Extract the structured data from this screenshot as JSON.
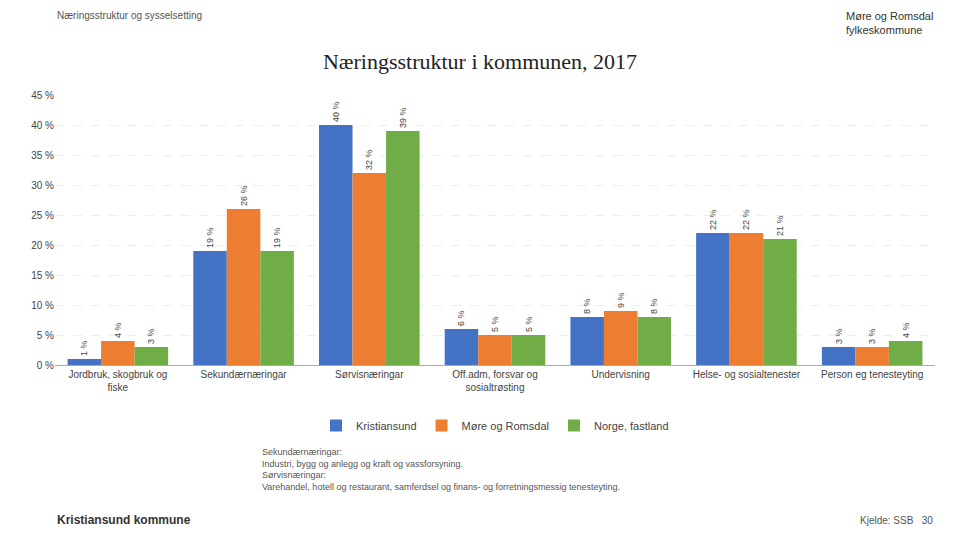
{
  "chart_data": {
    "type": "bar",
    "title": "Næringsstruktur i kommunen, 2017",
    "categories": [
      "Jordbruk, skogbruk og\nfiske",
      "Sekundærnæringar",
      "Sørvisnæringar",
      "Off.adm, forsvar og\nsosialtrøsting",
      "Undervisning",
      "Helse- og sosialtenester",
      "Person eg tenesteyting"
    ],
    "series": [
      {
        "name": "Kristiansund",
        "color": "#4472C4",
        "values": [
          1,
          19,
          40,
          6,
          8,
          22,
          3
        ],
        "value_labels": [
          "1 %",
          "19 %",
          "40 %",
          "6 %",
          "8 %",
          "22 %",
          "3 %"
        ]
      },
      {
        "name": "Møre og Romsdal",
        "color": "#ED7D31",
        "values": [
          4,
          26,
          32,
          5,
          9,
          22,
          3
        ],
        "value_labels": [
          "4 %",
          "26 %",
          "32 %",
          "5 %",
          "9 %",
          "22 %",
          "3 %"
        ]
      },
      {
        "name": "Norge, fastland",
        "color": "#70AD47",
        "values": [
          3,
          19,
          39,
          5,
          8,
          21,
          4
        ],
        "value_labels": [
          "3 %",
          "19 %",
          "39 %",
          "5 %",
          "8 %",
          "21 %",
          "4 %"
        ]
      }
    ],
    "ylim": [
      0,
      45
    ],
    "yticks": [
      {
        "value": 0,
        "label": "0 %"
      },
      {
        "value": 5,
        "label": "5 %"
      },
      {
        "value": 10,
        "label": "10 %"
      },
      {
        "value": 15,
        "label": "15 %"
      },
      {
        "value": 20,
        "label": "20 %"
      },
      {
        "value": 25,
        "label": "25 %"
      },
      {
        "value": 30,
        "label": "30 %"
      },
      {
        "value": 35,
        "label": "35 %"
      },
      {
        "value": 40,
        "label": "40 %"
      },
      {
        "value": 45,
        "label": "45 %"
      }
    ],
    "grid": true,
    "legend": "bottom",
    "data_labels": true,
    "header": "Næringsstruktur og sysselsetting",
    "logo_text": "Møre og Romsdal\nfylkeskommune",
    "footer_notes": [
      "Sekundærnæringar:",
      "Industri, bygg og anlegg og kraft og vassforsyning.",
      "Sørvisnæringar:",
      "Varehandel, hotell og restaurant, samferdsel og finans- og forretningsmessig tenesteyting."
    ],
    "footer_left": "Kristiansund kommune",
    "footer_right": "Kjelde: SSB   30"
  }
}
